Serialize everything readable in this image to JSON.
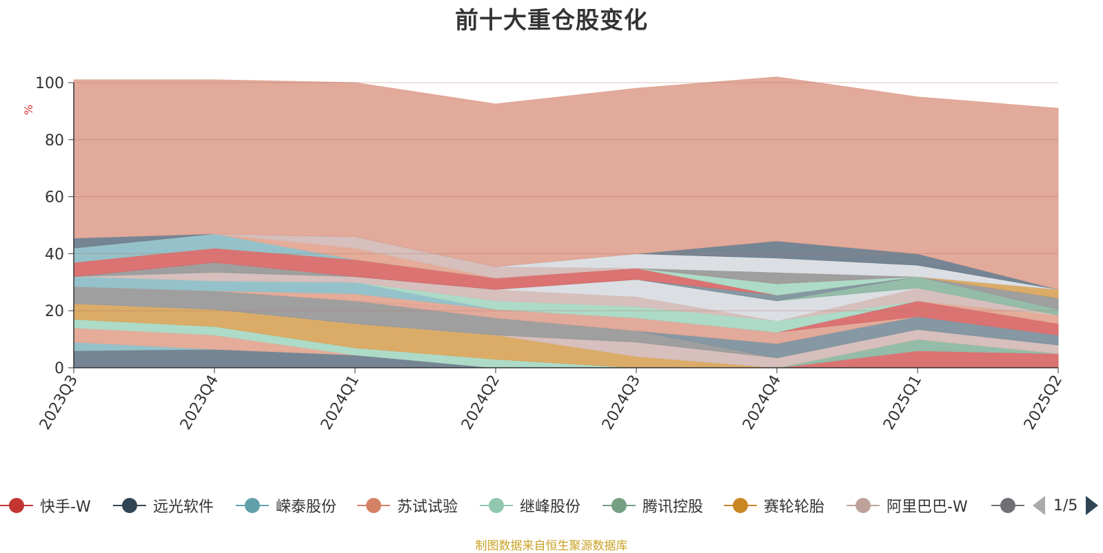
{
  "chart_data": {
    "type": "area",
    "title": "前十大重仓股变化",
    "ylabel": "%",
    "ylim": [
      0,
      100
    ],
    "yticks": [
      0,
      20,
      40,
      60,
      80,
      100
    ],
    "x": [
      "2023Q3",
      "2023Q4",
      "2024Q1",
      "2024Q2",
      "2024Q3",
      "2024Q4",
      "2025Q1",
      "2025Q2"
    ],
    "stacked": true,
    "grid": true,
    "legend_position": "bottom",
    "series": [
      {
        "name": "快手-W",
        "color": "#d96b6b",
        "values": [
          0,
          0,
          0,
          0,
          0,
          0,
          6,
          5
        ]
      },
      {
        "name": "远光软件",
        "color": "#6e7e8e",
        "values": [
          6,
          6.5,
          4.5,
          0,
          0,
          0,
          0,
          0
        ]
      },
      {
        "name": "嵘泰股份",
        "color": "#8fbfc7",
        "values": [
          3,
          0,
          0,
          0,
          0,
          0,
          0,
          0
        ]
      },
      {
        "name": "苏试试验",
        "color": "#e3a894",
        "values": [
          5,
          5,
          0,
          0,
          0,
          0,
          0,
          0
        ]
      },
      {
        "name": "继峰股份",
        "color": "#a9d9c5",
        "values": [
          3,
          3,
          2.5,
          3,
          0,
          0,
          0,
          0
        ]
      },
      {
        "name": "腾讯控股",
        "color": "#8fb8a3",
        "values": [
          0,
          0,
          0,
          0,
          0,
          0,
          4,
          0
        ]
      },
      {
        "name": "赛轮轮胎",
        "color": "#d9a85f",
        "values": [
          5.5,
          6,
          8.5,
          8.5,
          4,
          0,
          0,
          0
        ]
      },
      {
        "name": "阿里巴巴-W",
        "color": "#d4bcb8",
        "values": [
          0,
          0,
          0,
          0,
          5,
          3.5,
          3.5,
          3
        ]
      },
      {
        "name": "",
        "color": "#9a9a9a",
        "values": [
          6,
          6.5,
          8,
          6,
          4,
          0,
          0,
          0
        ]
      },
      {
        "name": "",
        "color": "#7f929e",
        "values": [
          0,
          0,
          0,
          0,
          0,
          5,
          4.5,
          3.5
        ]
      },
      {
        "name": "",
        "color": "#e0a595",
        "values": [
          0,
          0,
          0,
          3,
          4.5,
          4,
          0,
          0
        ]
      },
      {
        "name": "",
        "color": "#d96b6b",
        "values": [
          0,
          0,
          0,
          0,
          0,
          0,
          5.5,
          4
        ]
      },
      {
        "name": "",
        "color": "#e3a894",
        "values": [
          0,
          0,
          2.5,
          0,
          0,
          0,
          0,
          3
        ]
      },
      {
        "name": "",
        "color": "#8fbfc7",
        "values": [
          3.5,
          3.5,
          4,
          0,
          0,
          0,
          0,
          0
        ]
      },
      {
        "name": "",
        "color": "#a9d9c5",
        "values": [
          0,
          0,
          0,
          3,
          4,
          4,
          0,
          0
        ]
      },
      {
        "name": "",
        "color": "#d4bcb8",
        "values": [
          0,
          3,
          2,
          4,
          3.5,
          0,
          4.5,
          0
        ]
      },
      {
        "name": "",
        "color": "#d9dde2",
        "values": [
          0,
          0,
          0,
          0,
          6,
          7,
          0,
          0
        ]
      },
      {
        "name": "",
        "color": "#8fb8a3",
        "values": [
          0,
          0,
          0,
          0,
          0,
          0,
          4,
          2
        ]
      },
      {
        "name": "",
        "color": "#9a9a9a",
        "values": [
          0,
          3.5,
          0,
          0,
          0,
          0,
          0,
          4
        ]
      },
      {
        "name": "",
        "color": "#7f929e",
        "values": [
          0,
          0,
          0,
          0,
          0,
          2,
          0,
          0
        ]
      },
      {
        "name": "",
        "color": "#d96b6b",
        "values": [
          5,
          5,
          6,
          4,
          4,
          0,
          0,
          0
        ]
      },
      {
        "name": "",
        "color": "#d9a85f",
        "values": [
          0,
          0,
          0,
          0,
          0,
          0,
          0,
          3
        ]
      },
      {
        "name": "",
        "color": "#a9d9c5",
        "values": [
          0,
          0,
          0,
          0,
          0,
          4,
          0,
          0
        ]
      },
      {
        "name": "",
        "color": "#8fbfc7",
        "values": [
          5,
          5,
          0,
          0,
          0,
          0,
          0,
          0
        ]
      },
      {
        "name": "",
        "color": "#e3a894",
        "values": [
          0,
          0,
          4,
          0,
          0,
          0,
          0,
          0
        ]
      },
      {
        "name": "",
        "color": "#d4bcb8",
        "values": [
          0,
          0,
          4,
          4,
          0,
          0,
          0,
          0
        ]
      },
      {
        "name": "",
        "color": "#9a9a9a",
        "values": [
          0,
          0,
          0,
          0,
          0,
          4,
          0,
          0
        ]
      },
      {
        "name": "",
        "color": "#d9dde2",
        "values": [
          0,
          0,
          0,
          0,
          5,
          5,
          4,
          0
        ]
      },
      {
        "name": "",
        "color": "#6e7e8e",
        "values": [
          3.5,
          0,
          0,
          0,
          0,
          6,
          4,
          0
        ]
      },
      {
        "name": "",
        "color": "#e0a595",
        "values": [
          55.5,
          54,
          54,
          57,
          58,
          57.5,
          55,
          63.5
        ]
      }
    ]
  },
  "legend": {
    "items": [
      {
        "label": "快手-W",
        "color": "#c23531"
      },
      {
        "label": "远光软件",
        "color": "#2f4554"
      },
      {
        "label": "嵘泰股份",
        "color": "#61a0a8"
      },
      {
        "label": "苏试试验",
        "color": "#d48265"
      },
      {
        "label": "继峰股份",
        "color": "#91c7ae"
      },
      {
        "label": "腾讯控股",
        "color": "#749f83"
      },
      {
        "label": "赛轮轮胎",
        "color": "#ca8622"
      },
      {
        "label": "阿里巴巴-W",
        "color": "#bda29a"
      },
      {
        "label": "",
        "color": "#6e7074"
      }
    ],
    "page_text": "1/5"
  },
  "source_note": "制图数据来自恒生聚源数据库"
}
